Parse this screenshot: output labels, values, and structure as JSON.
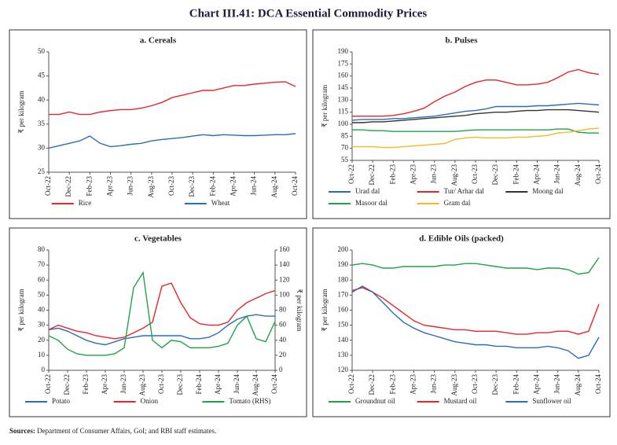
{
  "title": "Chart III.41: DCA Essential Commodity Prices",
  "source_label": "Sources:",
  "source_text": "Department of Consumer Affairs, GoI; and RBI staff estimates.",
  "chart_data": [
    {
      "type": "line",
      "title": "a. Cereals",
      "y_label": "₹ per kilogram",
      "categories": [
        "Oct-22",
        null,
        "Dec-22",
        null,
        "Feb-23",
        null,
        "Apr-23",
        null,
        "Jun-23",
        null,
        "Aug-23",
        null,
        "Oct-23",
        null,
        "Dec-23",
        null,
        "Feb-24",
        null,
        "Apr-24",
        null,
        "Jun-24",
        null,
        "Aug-24",
        null,
        "Oct-24"
      ],
      "ylim": [
        25,
        50
      ],
      "yticks": [
        25,
        30,
        35,
        40,
        45,
        50
      ],
      "legend": "bottom",
      "series": [
        {
          "name": "Rice",
          "color": "#e8262a",
          "values": [
            37,
            37,
            37.5,
            37,
            37,
            37.5,
            37.8,
            38,
            38,
            38.3,
            38.8,
            39.5,
            40.5,
            41,
            41.5,
            42,
            42,
            42.5,
            43,
            43,
            43.3,
            43.5,
            43.7,
            43.8,
            42.8
          ]
        },
        {
          "name": "Wheat",
          "color": "#2a6db5",
          "values": [
            30,
            30.5,
            31,
            31.5,
            32.5,
            31,
            30.3,
            30.5,
            30.8,
            31,
            31.5,
            31.8,
            32,
            32.2,
            32.5,
            32.8,
            32.6,
            32.8,
            32.7,
            32.6,
            32.6,
            32.7,
            32.8,
            32.8,
            33
          ]
        }
      ]
    },
    {
      "type": "line",
      "title": "b. Pulses",
      "y_label": "₹ per kilogram",
      "categories": [
        "Oct-22",
        null,
        "Dec-22",
        null,
        "Feb-23",
        null,
        "Apr-23",
        null,
        "Jun-23",
        null,
        "Aug-23",
        null,
        "Oct-23",
        null,
        "Dec-23",
        null,
        "Feb-24",
        null,
        "Apr-24",
        null,
        "Jun-24",
        null,
        "Aug-24",
        null,
        "Oct-24"
      ],
      "ylim": [
        55,
        190
      ],
      "yticks": [
        55,
        70,
        85,
        100,
        115,
        130,
        145,
        160,
        175,
        190
      ],
      "legend": "bottom",
      "series": [
        {
          "name": "Urad dal",
          "color": "#2a6db5",
          "values": [
            105,
            106,
            106,
            106,
            107,
            107,
            108,
            109,
            110,
            112,
            114,
            116,
            117,
            119,
            122,
            122,
            122,
            122,
            123,
            123,
            124,
            125,
            126,
            125,
            124
          ]
        },
        {
          "name": "Tur/ Arhar dal",
          "color": "#e8262a",
          "values": [
            110,
            110,
            110,
            110,
            111,
            113,
            116,
            120,
            128,
            135,
            140,
            147,
            152,
            155,
            155,
            152,
            149,
            149,
            150,
            152,
            158,
            165,
            168,
            164,
            162
          ]
        },
        {
          "name": "Moong dal",
          "color": "#333333",
          "values": [
            102,
            102,
            103,
            103,
            104,
            105,
            106,
            107,
            108,
            109,
            110,
            111,
            113,
            114,
            115,
            115,
            116,
            117,
            117,
            118,
            118,
            118,
            117,
            116,
            115
          ]
        },
        {
          "name": "Masoor dal",
          "color": "#1fa34a",
          "values": [
            93,
            93,
            92,
            92,
            91,
            91,
            91,
            91,
            91,
            91,
            91,
            92,
            93,
            93,
            93,
            93,
            93,
            93,
            93,
            93,
            94,
            94,
            90,
            89,
            89
          ]
        },
        {
          "name": "Gram dal",
          "color": "#f5b921",
          "values": [
            72,
            72,
            72,
            71,
            71,
            72,
            73,
            74,
            75,
            76,
            81,
            83,
            84,
            83,
            83,
            83,
            84,
            84,
            85,
            86,
            89,
            90,
            92,
            94,
            95
          ]
        }
      ]
    },
    {
      "type": "line",
      "title": "c. Vegetables",
      "y_label": "₹ per kilogram",
      "y2_label": "₹ per kilogram",
      "categories": [
        "Oct-22",
        null,
        "Dec-22",
        null,
        "Feb-23",
        null,
        "Apr-23",
        null,
        "Jun-23",
        null,
        "Aug-23",
        null,
        "Oct-23",
        null,
        "Dec-23",
        null,
        "Feb-24",
        null,
        "Apr-24",
        null,
        "Jun-24",
        null,
        "Aug-24",
        null,
        "Oct-24"
      ],
      "ylim": [
        0,
        80
      ],
      "yticks": [
        0,
        10,
        20,
        30,
        40,
        50,
        60,
        70,
        80
      ],
      "y2lim": [
        0,
        160
      ],
      "y2ticks": [
        0,
        20,
        40,
        60,
        80,
        100,
        120,
        140,
        160
      ],
      "legend": "bottom",
      "series": [
        {
          "name": "Potato",
          "color": "#2a6db5",
          "values": [
            27,
            28,
            26,
            23,
            20,
            18,
            17,
            19,
            21,
            22,
            23,
            23,
            23,
            23,
            23,
            21,
            21,
            22,
            25,
            30,
            34,
            36,
            37,
            36,
            36
          ]
        },
        {
          "name": "Onion",
          "color": "#e8262a",
          "values": [
            27,
            30,
            28,
            26,
            25,
            23,
            22,
            21,
            22,
            25,
            28,
            32,
            56,
            58,
            45,
            35,
            31,
            30,
            30,
            32,
            40,
            45,
            48,
            51,
            53
          ]
        },
        {
          "name": "Tomato (RHS)",
          "color": "#1fa34a",
          "axis": "y2",
          "values": [
            46,
            40,
            28,
            22,
            20,
            20,
            20,
            22,
            30,
            110,
            130,
            40,
            30,
            40,
            38,
            30,
            30,
            30,
            32,
            36,
            60,
            72,
            42,
            38,
            65
          ]
        }
      ]
    },
    {
      "type": "line",
      "title": "d. Edible Oils (packed)",
      "y_label": "₹ per kilogram",
      "categories": [
        "Oct-22",
        null,
        "Dec-22",
        null,
        "Feb-23",
        null,
        "Apr-23",
        null,
        "Jun-23",
        null,
        "Aug-23",
        null,
        "Oct-23",
        null,
        "Dec-23",
        null,
        "Feb-24",
        null,
        "Apr-24",
        null,
        "Jun-24",
        null,
        "Aug-24",
        null,
        "Oct-24"
      ],
      "ylim": [
        120,
        200
      ],
      "yticks": [
        120,
        130,
        140,
        150,
        160,
        170,
        180,
        190,
        200
      ],
      "legend": "bottom",
      "series": [
        {
          "name": "Groundnut oil",
          "color": "#1fa34a",
          "values": [
            190,
            191,
            190,
            188,
            188,
            189,
            189,
            189,
            189,
            190,
            190,
            191,
            191,
            190,
            189,
            188,
            188,
            188,
            187,
            188,
            188,
            187,
            184,
            185,
            195
          ]
        },
        {
          "name": "Mustard oil",
          "color": "#e8262a",
          "values": [
            173,
            175,
            172,
            168,
            163,
            158,
            153,
            150,
            149,
            148,
            147,
            147,
            146,
            146,
            146,
            145,
            144,
            144,
            145,
            145,
            146,
            146,
            144,
            146,
            164
          ]
        },
        {
          "name": "Sunflower oil",
          "color": "#2a6db5",
          "values": [
            172,
            176,
            172,
            165,
            158,
            152,
            148,
            145,
            143,
            141,
            139,
            138,
            137,
            137,
            136,
            136,
            135,
            135,
            135,
            136,
            135,
            133,
            128,
            130,
            142
          ]
        }
      ]
    }
  ]
}
